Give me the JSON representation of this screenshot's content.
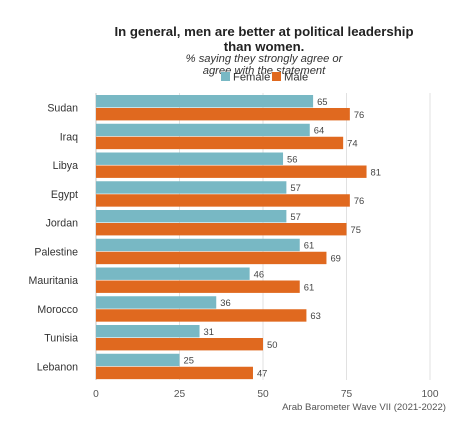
{
  "chart_data": {
    "type": "bar",
    "orientation": "horizontal",
    "title_lines": [
      "In general, men are better at political leadership",
      "than women."
    ],
    "subtitle_lines": [
      "% saying they strongly agree or",
      "agree with the statement"
    ],
    "categories": [
      "Sudan",
      "Iraq",
      "Libya",
      "Egypt",
      "Jordan",
      "Palestine",
      "Mauritania",
      "Morocco",
      "Tunisia",
      "Lebanon"
    ],
    "series": [
      {
        "name": "Female",
        "color": "#78b8c4",
        "values": [
          65,
          64,
          56,
          57,
          57,
          61,
          46,
          36,
          31,
          25
        ]
      },
      {
        "name": "Male",
        "color": "#e0691f",
        "values": [
          76,
          74,
          81,
          76,
          75,
          69,
          61,
          63,
          50,
          47
        ]
      }
    ],
    "xlim": [
      0,
      100
    ],
    "xticks": [
      0,
      25,
      50,
      75,
      100
    ],
    "grid": true,
    "legend_position": "top-center",
    "source": "Arab Barometer Wave VII (2021-2022)"
  }
}
